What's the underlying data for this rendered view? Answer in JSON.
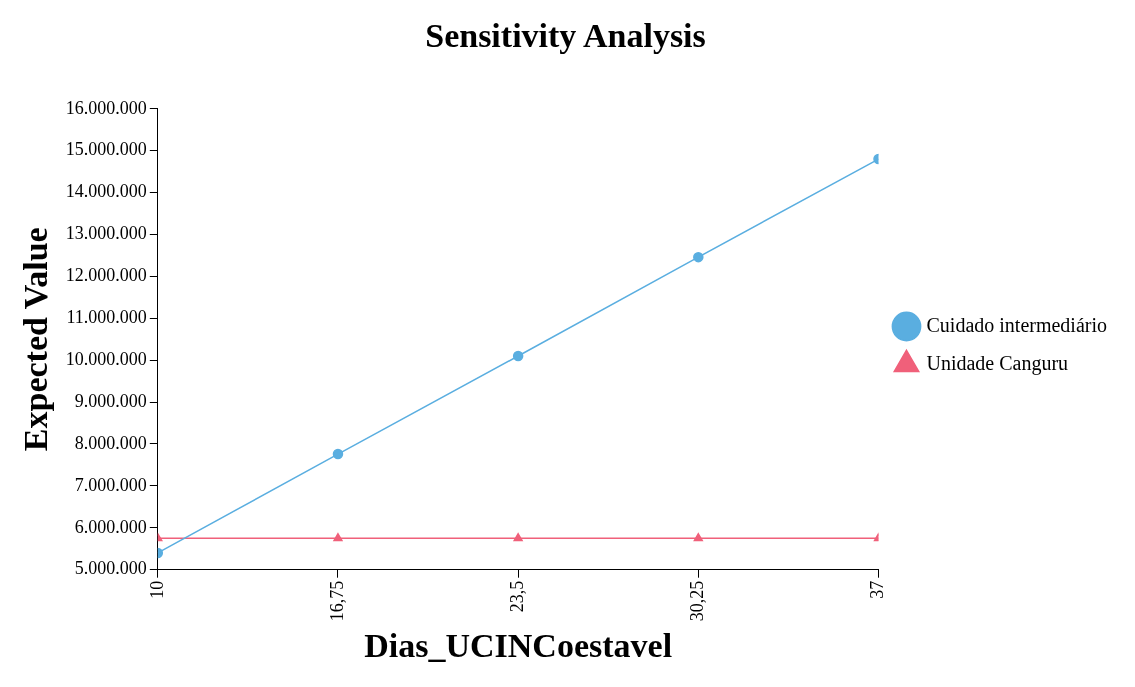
{
  "chart_data": {
    "type": "line",
    "title": "Sensitivity Analysis",
    "xlabel": "Dias_UCINCoestavel",
    "ylabel": "Expected Value",
    "x": [
      10,
      16.75,
      23.5,
      30.25,
      37
    ],
    "series": [
      {
        "name": "Cuidado intermediário",
        "color": "#5aaee0",
        "marker": "circle",
        "values": [
          5400000,
          7760000,
          10100000,
          12460000,
          14800000
        ]
      },
      {
        "name": "Unidade Canguru",
        "color": "#f0607a",
        "marker": "triangle",
        "values": [
          5750000,
          5750000,
          5750000,
          5750000,
          5750000
        ]
      }
    ],
    "xlim": [
      10,
      37
    ],
    "xticks": [
      10,
      {
        "value": 16.75,
        "label": "16,75"
      },
      {
        "value": 23.5,
        "label": "23,5"
      },
      {
        "value": 30.25,
        "label": "30,25"
      },
      37
    ],
    "ylim": [
      5000000,
      16000000
    ],
    "yticks": [
      {
        "value": 5000000,
        "label": "5.000.000"
      },
      {
        "value": 6000000,
        "label": "6.000.000"
      },
      {
        "value": 7000000,
        "label": "7.000.000"
      },
      {
        "value": 8000000,
        "label": "8.000.000"
      },
      {
        "value": 9000000,
        "label": "9.000.000"
      },
      {
        "value": 10000000,
        "label": "10.000.000"
      },
      {
        "value": 11000000,
        "label": "11.000.000"
      },
      {
        "value": 12000000,
        "label": "12.000.000"
      },
      {
        "value": 13000000,
        "label": "13.000.000"
      },
      {
        "value": 14000000,
        "label": "14.000.000"
      },
      {
        "value": 15000000,
        "label": "15.000.000"
      },
      {
        "value": 16000000,
        "label": "16.000.000"
      }
    ],
    "grid": false,
    "legend": "right",
    "line_style": "solid"
  }
}
